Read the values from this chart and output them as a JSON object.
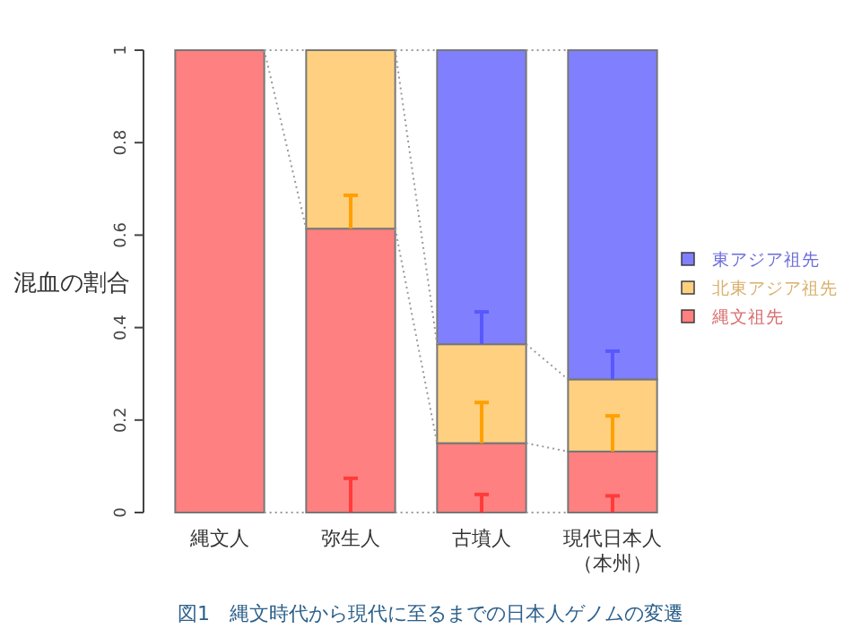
{
  "chart_data": {
    "type": "bar",
    "stacked": true,
    "ylabel": "混血の割合",
    "categories": [
      "縄文人",
      "弥生人",
      "古墳人",
      "現代日本人（本州）"
    ],
    "series": [
      {
        "name": "縄文祖先",
        "color": "#ff8080",
        "values": [
          1,
          0.614,
          0.15,
          0.132
        ],
        "errors": [
          null,
          [
            0,
            0.074
          ],
          [
            0,
            0.039
          ],
          [
            0,
            0.036
          ]
        ]
      },
      {
        "name": "北東アジア祖先",
        "color": "#ffd080",
        "values": [
          null,
          0.386,
          0.214,
          0.156
        ],
        "errors": [
          null,
          [
            0.614,
            0.686
          ],
          [
            0.15,
            0.238
          ],
          [
            0.132,
            0.209
          ]
        ]
      },
      {
        "name": "東アジア祖先",
        "color": "#8080ff",
        "values": [
          null,
          null,
          0.636,
          0.712
        ],
        "errors": [
          null,
          null,
          [
            0.364,
            0.434
          ],
          [
            0.288,
            0.349
          ]
        ]
      }
    ],
    "ylim": [
      0,
      1
    ],
    "yticks": [
      0,
      0.2,
      0.4,
      0.6,
      0.8,
      1
    ],
    "grid": false,
    "legend": "right",
    "annotations": [
      "図1　縄文時代から現代に至るまでの日本人ゲノムの変遷"
    ]
  }
}
